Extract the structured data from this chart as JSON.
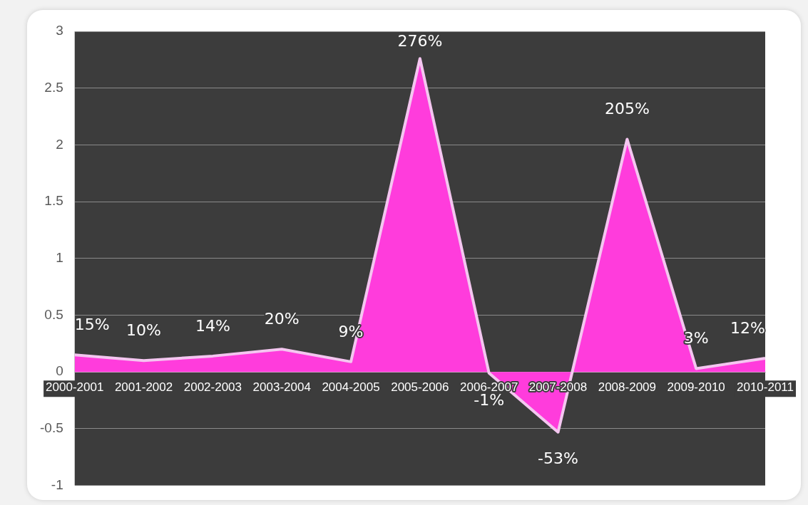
{
  "chart_data": {
    "type": "area",
    "categories": [
      "2000-2001",
      "2001-2002",
      "2002-2003",
      "2003-2004",
      "2004-2005",
      "2005-2006",
      "2006-2007",
      "2007-2008",
      "2008-2009",
      "2009-2010",
      "2010-2011"
    ],
    "series": [
      {
        "color": "#ff3cdc",
        "values": [
          0.15,
          0.1,
          0.14,
          0.2,
          0.09,
          2.76,
          -0.01,
          -0.53,
          2.05,
          0.03,
          0.12
        ],
        "value_labels": [
          "15%",
          "10%",
          "14%",
          "20%",
          "9%",
          "276%",
          "-1%",
          "-53%",
          "205%",
          "3%",
          "12%"
        ]
      }
    ],
    "ylim": [
      -1,
      3
    ],
    "yticks": [
      -1,
      -0.5,
      0,
      0.5,
      1,
      1.5,
      2,
      2.5,
      3
    ],
    "grid": "y",
    "legend": false
  }
}
